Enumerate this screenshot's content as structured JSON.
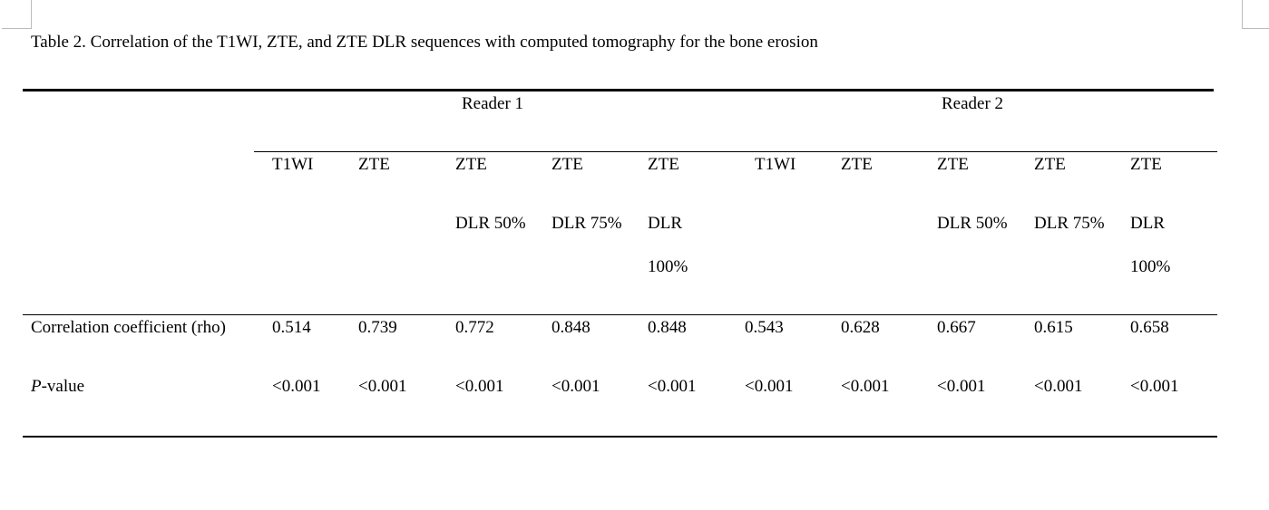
{
  "title": "Table 2. Correlation of the T1WI, ZTE, and ZTE DLR sequences with computed tomography for the bone erosion",
  "table": {
    "readers": [
      "Reader 1",
      "Reader 2"
    ],
    "columns": [
      [
        "T1WI"
      ],
      [
        "ZTE"
      ],
      [
        "ZTE",
        "DLR 50%"
      ],
      [
        "ZTE",
        "DLR 75%"
      ],
      [
        "ZTE",
        "DLR",
        "100%"
      ],
      [
        "T1WI"
      ],
      [
        "ZTE"
      ],
      [
        "ZTE",
        "DLR 50%"
      ],
      [
        "ZTE",
        "DLR 75%"
      ],
      [
        "ZTE",
        "DLR",
        "100%"
      ]
    ],
    "rows": [
      {
        "label": [
          "Correlation coefficient (rho)"
        ],
        "values": [
          "0.514",
          "0.739",
          "0.772",
          "0.848",
          "0.848",
          "0.543",
          "0.628",
          "0.667",
          "0.615",
          "0.658"
        ]
      },
      {
        "label": [
          "P",
          "-value"
        ],
        "values": [
          "<0.001",
          "<0.001",
          "<0.001",
          "<0.001",
          "<0.001",
          "<0.001",
          "<0.001",
          "<0.001",
          "<0.001",
          "<0.001"
        ]
      }
    ]
  }
}
